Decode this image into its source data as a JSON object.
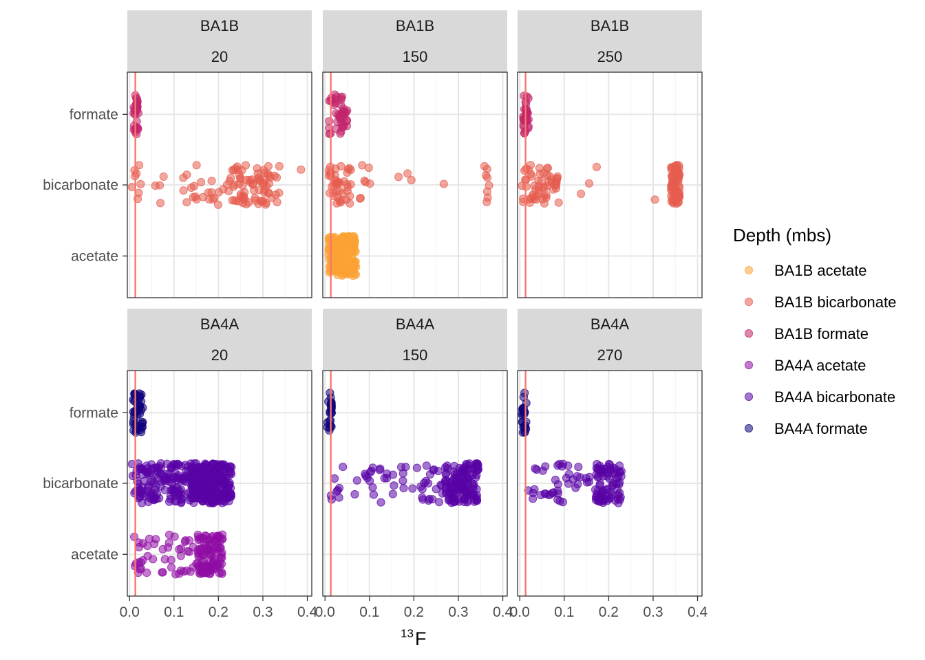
{
  "chart_data": {
    "type": "scatter",
    "x_axis": {
      "title_superscript": "13",
      "title_main": "F",
      "range": [
        -0.005,
        0.41
      ],
      "ticks": [
        0.0,
        0.1,
        0.2,
        0.3,
        0.4
      ],
      "tick_labels": [
        "0.0",
        "0.1",
        "0.2",
        "0.3",
        "0.4"
      ],
      "reference_line_x": 0.013,
      "reference_line_color": "#F8766D"
    },
    "y_axis": {
      "categories": [
        "acetate",
        "bicarbonate",
        "formate"
      ]
    },
    "grid": true,
    "legend": {
      "title": "Depth (mbs)",
      "placement": "right",
      "entries": [
        {
          "label": "BA1B acetate",
          "color": "#FCA235"
        },
        {
          "label": "BA1B bicarbonate",
          "color": "#E65D4F"
        },
        {
          "label": "BA1B formate",
          "color": "#C2256B"
        },
        {
          "label": "BA4A acetate",
          "color": "#8F0DA4"
        },
        {
          "label": "BA4A bicarbonate",
          "color": "#5903A5"
        },
        {
          "label": "BA4A formate",
          "color": "#10047A"
        }
      ]
    },
    "panels": [
      {
        "site": "BA1B",
        "depth": "20",
        "groups": [
          {
            "category": "formate",
            "series": "BA1B formate",
            "clusters": [
              [
                0.008,
                0.02,
                30
              ]
            ]
          },
          {
            "category": "bicarbonate",
            "series": "BA1B bicarbonate",
            "clusters": [
              [
                0.005,
                0.03,
                8
              ],
              [
                0.05,
                0.09,
                4
              ],
              [
                0.12,
                0.22,
                22
              ],
              [
                0.22,
                0.34,
                75
              ],
              [
                0.38,
                0.39,
                1
              ]
            ]
          },
          {
            "category": "acetate",
            "series": "BA1B acetate",
            "clusters": []
          }
        ]
      },
      {
        "site": "BA1B",
        "depth": "150",
        "groups": [
          {
            "category": "formate",
            "series": "BA1B formate",
            "clusters": [
              [
                0.008,
                0.05,
                42
              ]
            ]
          },
          {
            "category": "bicarbonate",
            "series": "BA1B bicarbonate",
            "clusters": [
              [
                0.008,
                0.06,
                40
              ],
              [
                0.06,
                0.2,
                10
              ],
              [
                0.26,
                0.27,
                1
              ],
              [
                0.35,
                0.37,
                8
              ]
            ]
          },
          {
            "category": "acetate",
            "series": "BA1B acetate",
            "clusters": [
              [
                0.008,
                0.07,
                220
              ]
            ]
          }
        ]
      },
      {
        "site": "BA1B",
        "depth": "250",
        "groups": [
          {
            "category": "formate",
            "series": "BA1B formate",
            "clusters": [
              [
                0.008,
                0.02,
                30
              ]
            ]
          },
          {
            "category": "bicarbonate",
            "series": "BA1B bicarbonate",
            "clusters": [
              [
                0.005,
                0.09,
                55
              ],
              [
                0.12,
                0.18,
                3
              ],
              [
                0.3,
                0.305,
                1
              ],
              [
                0.34,
                0.36,
                70
              ]
            ]
          },
          {
            "category": "acetate",
            "series": "BA1B acetate",
            "clusters": []
          }
        ]
      },
      {
        "site": "BA4A",
        "depth": "20",
        "groups": [
          {
            "category": "formate",
            "series": "BA4A formate",
            "clusters": [
              [
                0.008,
                0.03,
                45
              ]
            ]
          },
          {
            "category": "bicarbonate",
            "series": "BA4A bicarbonate",
            "clusters": [
              [
                0.005,
                0.14,
                150
              ],
              [
                0.14,
                0.23,
                250
              ]
            ]
          },
          {
            "category": "acetate",
            "series": "BA4A acetate",
            "clusters": [
              [
                0.01,
                0.15,
                45
              ],
              [
                0.15,
                0.21,
                100
              ]
            ]
          }
        ]
      },
      {
        "site": "BA4A",
        "depth": "150",
        "groups": [
          {
            "category": "formate",
            "series": "BA4A formate",
            "clusters": [
              [
                0.005,
                0.015,
                25
              ]
            ]
          },
          {
            "category": "bicarbonate",
            "series": "BA4A bicarbonate",
            "clusters": [
              [
                0.005,
                0.27,
                55
              ],
              [
                0.27,
                0.345,
                140
              ]
            ]
          },
          {
            "category": "acetate",
            "series": "BA4A acetate",
            "clusters": []
          }
        ]
      },
      {
        "site": "BA4A",
        "depth": "270",
        "groups": [
          {
            "category": "formate",
            "series": "BA4A formate",
            "clusters": [
              [
                0.005,
                0.015,
                25
              ]
            ]
          },
          {
            "category": "bicarbonate",
            "series": "BA4A bicarbonate",
            "clusters": [
              [
                0.005,
                0.16,
                40
              ],
              [
                0.17,
                0.23,
                80
              ]
            ]
          },
          {
            "category": "acetate",
            "series": "BA4A acetate",
            "clusters": []
          }
        ]
      }
    ]
  }
}
